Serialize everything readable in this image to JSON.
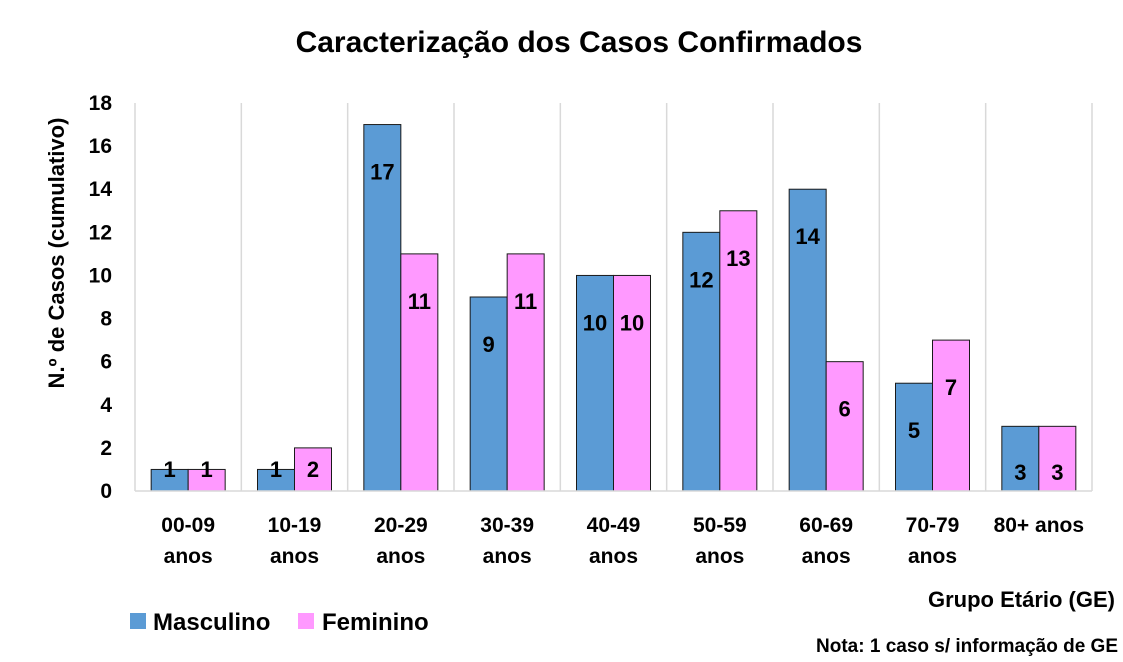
{
  "chart_data": {
    "type": "bar",
    "title": "Caracterização dos Casos Confirmados",
    "ylabel": "N.º de Casos (cumulativo)",
    "xlabel": "Grupo Etário (GE)",
    "note": "Nota: 1 caso s/ informação de GE",
    "ylim": [
      0,
      18
    ],
    "yticks": [
      0,
      2,
      4,
      6,
      8,
      10,
      12,
      14,
      16,
      18
    ],
    "grid": "vertical category separators",
    "legend_position": "bottom-left",
    "categories": [
      [
        "00-09",
        "anos"
      ],
      [
        "10-19",
        "anos"
      ],
      [
        "20-29",
        "anos"
      ],
      [
        "30-39",
        "anos"
      ],
      [
        "40-49",
        "anos"
      ],
      [
        "50-59",
        "anos"
      ],
      [
        "60-69",
        "anos"
      ],
      [
        "70-79",
        "anos"
      ],
      [
        "80+ anos"
      ]
    ],
    "series": [
      {
        "name": "Masculino",
        "color": "#5b9bd5",
        "values": [
          1,
          1,
          17,
          9,
          10,
          12,
          14,
          5,
          3
        ]
      },
      {
        "name": "Feminino",
        "color": "#ff99ff",
        "values": [
          1,
          2,
          11,
          11,
          10,
          13,
          6,
          7,
          3
        ]
      }
    ]
  }
}
